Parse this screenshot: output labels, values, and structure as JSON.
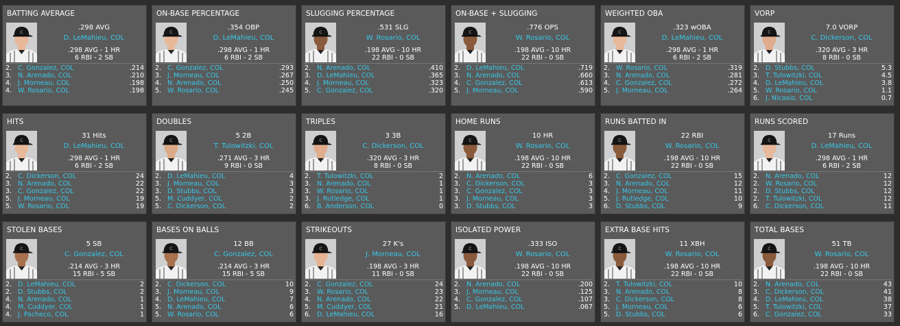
{
  "colors": {
    "background": "#2d2d2d",
    "card": "#5a5a5a",
    "link": "#38c8e8",
    "text": "#ffffff"
  },
  "cards": [
    {
      "title": "BATTING AVERAGE",
      "value": ".298 AVG",
      "name": "D. LeMahieu, COL",
      "line1": ".298 AVG - 1 HR",
      "line2": "6 RBI - 2 SB",
      "skin": "#e8b89a",
      "others": [
        {
          "rank": "2.",
          "name": "C. Gonzalez, COL",
          "value": ".214"
        },
        {
          "rank": "3.",
          "name": "N. Arenado, COL",
          "value": ".210"
        },
        {
          "rank": "4.",
          "name": "J. Morneau, COL",
          "value": ".198"
        },
        {
          "rank": "4.",
          "name": "W. Rosario, COL",
          "value": ".198"
        }
      ]
    },
    {
      "title": "ON-BASE PERCENTAGE",
      "value": ".354 OBP",
      "name": "D. LeMahieu, COL",
      "line1": ".298 AVG - 1 HR",
      "line2": "6 RBI - 2 SB",
      "skin": "#e8b89a",
      "others": [
        {
          "rank": "2.",
          "name": "C. Gonzalez, COL",
          "value": ".293"
        },
        {
          "rank": "3.",
          "name": "J. Morneau, COL",
          "value": ".267"
        },
        {
          "rank": "4.",
          "name": "N. Arenado, COL",
          "value": ".250"
        },
        {
          "rank": "5.",
          "name": "W. Rosario, COL",
          "value": ".245"
        }
      ]
    },
    {
      "title": "SLUGGING PERCENTAGE",
      "value": ".531 SLG",
      "name": "W. Rosario, COL",
      "line1": ".198 AVG - 10 HR",
      "line2": "22 RBI - 0 SB",
      "skin": "#8a5a3c",
      "others": [
        {
          "rank": "2.",
          "name": "N. Arenado, COL",
          "value": ".410"
        },
        {
          "rank": "3.",
          "name": "D. LeMahieu, COL",
          "value": ".365"
        },
        {
          "rank": "4.",
          "name": "J. Morneau, COL",
          "value": ".323"
        },
        {
          "rank": "5.",
          "name": "C. Gonzalez, COL",
          "value": ".320"
        }
      ]
    },
    {
      "title": "ON-BASE + SLUGGING",
      "value": ".776 OPS",
      "name": "W. Rosario, COL",
      "line1": ".198 AVG - 10 HR",
      "line2": "22 RBI - 0 SB",
      "skin": "#8a5a3c",
      "others": [
        {
          "rank": "2.",
          "name": "D. LeMahieu, COL",
          "value": ".719"
        },
        {
          "rank": "3.",
          "name": "N. Arenado, COL",
          "value": ".660"
        },
        {
          "rank": "4.",
          "name": "C. Gonzalez, COL",
          "value": ".613"
        },
        {
          "rank": "5.",
          "name": "J. Morneau, COL",
          "value": ".590"
        }
      ]
    },
    {
      "title": "WEIGHTED OBA",
      "value": ".323 wOBA",
      "name": "D. LeMahieu, COL",
      "line1": ".298 AVG - 1 HR",
      "line2": "6 RBI - 2 SB",
      "skin": "#e8b89a",
      "others": [
        {
          "rank": "2.",
          "name": "W. Rosario, COL",
          "value": ".319"
        },
        {
          "rank": "3.",
          "name": "N. Arenado, COL",
          "value": ".281"
        },
        {
          "rank": "4.",
          "name": "C. Gonzalez, COL",
          "value": ".272"
        },
        {
          "rank": "5.",
          "name": "J. Morneau, COL",
          "value": ".264"
        }
      ]
    },
    {
      "title": "VORP",
      "value": "7.0 VORP",
      "name": "C. Dickerson, COL",
      "line1": ".320 AVG - 3 HR",
      "line2": "8 RBI - 0 SB",
      "skin": "#e0ac8c",
      "others": [
        {
          "rank": "2.",
          "name": "D. Stubbs, COL",
          "value": "5.3"
        },
        {
          "rank": "3.",
          "name": "T. Tulowitzki, COL",
          "value": "4.5"
        },
        {
          "rank": "4.",
          "name": "D. LeMahieu, COL",
          "value": "3.8"
        },
        {
          "rank": "5.",
          "name": "W. Rosario, COL",
          "value": "1.1"
        },
        {
          "rank": "6.",
          "name": "J. Nicasio, COL",
          "value": "0.7"
        }
      ]
    },
    {
      "title": "HITS",
      "value": "31 Hits",
      "name": "D. LeMahieu, COL",
      "line1": ".298 AVG - 1 HR",
      "line2": "6 RBI - 2 SB",
      "skin": "#e8b89a",
      "others": [
        {
          "rank": "2.",
          "name": "C. Dickerson, COL",
          "value": "24"
        },
        {
          "rank": "3.",
          "name": "N. Arenado, COL",
          "value": "22"
        },
        {
          "rank": "3.",
          "name": "C. Gonzalez, COL",
          "value": "22"
        },
        {
          "rank": "5.",
          "name": "J. Morneau, COL",
          "value": "19"
        },
        {
          "rank": "5.",
          "name": "W. Rosario, COL",
          "value": "19"
        }
      ]
    },
    {
      "title": "DOUBLES",
      "value": "5 2B",
      "name": "T. Tulowitzki, COL",
      "line1": ".271 AVG - 3 HR",
      "line2": "9 RBI - 0 SB",
      "skin": "#dcaa88",
      "others": [
        {
          "rank": "2.",
          "name": "D. LeMahieu, COL",
          "value": "4"
        },
        {
          "rank": "3.",
          "name": "J. Morneau, COL",
          "value": "3"
        },
        {
          "rank": "3.",
          "name": "D. Stubbs, COL",
          "value": "3"
        },
        {
          "rank": "5.",
          "name": "M. Cuddyer, COL",
          "value": "2"
        },
        {
          "rank": "5.",
          "name": "C. Dickerson, COL",
          "value": "2"
        }
      ]
    },
    {
      "title": "TRIPLES",
      "value": "3 3B",
      "name": "C. Dickerson, COL",
      "line1": ".320 AVG - 3 HR",
      "line2": "8 RBI - 0 SB",
      "skin": "#e0ac8c",
      "others": [
        {
          "rank": "2.",
          "name": "T. Tulowitzki, COL",
          "value": "2"
        },
        {
          "rank": "3.",
          "name": "N. Arenado, COL",
          "value": "1"
        },
        {
          "rank": "3.",
          "name": "W. Rosario, COL",
          "value": "1"
        },
        {
          "rank": "3.",
          "name": "J. Rutledge, COL",
          "value": "1"
        },
        {
          "rank": "6.",
          "name": "B. Anderson, COL",
          "value": "0"
        }
      ]
    },
    {
      "title": "HOME RUNS",
      "value": "10 HR",
      "name": "W. Rosario, COL",
      "line1": ".198 AVG - 10 HR",
      "line2": "22 RBI - 0 SB",
      "skin": "#8a5a3c",
      "others": [
        {
          "rank": "2.",
          "name": "N. Arenado, COL",
          "value": "6"
        },
        {
          "rank": "3.",
          "name": "C. Dickerson, COL",
          "value": "3"
        },
        {
          "rank": "3.",
          "name": "C. Gonzalez, COL",
          "value": "3"
        },
        {
          "rank": "3.",
          "name": "J. Morneau, COL",
          "value": "3"
        },
        {
          "rank": "3.",
          "name": "D. Stubbs, COL",
          "value": "3"
        }
      ]
    },
    {
      "title": "RUNS BATTED IN",
      "value": "22 RBI",
      "name": "W. Rosario, COL",
      "line1": ".198 AVG - 10 HR",
      "line2": "22 RBI - 0 SB",
      "skin": "#8a5a3c",
      "others": [
        {
          "rank": "2.",
          "name": "C. Gonzalez, COL",
          "value": "15"
        },
        {
          "rank": "3.",
          "name": "N. Arenado, COL",
          "value": "12"
        },
        {
          "rank": "4.",
          "name": "J. Morneau, COL",
          "value": "11"
        },
        {
          "rank": "5.",
          "name": "J. Rutledge, COL",
          "value": "10"
        },
        {
          "rank": "6.",
          "name": "D. Stubbs, COL",
          "value": "9"
        }
      ]
    },
    {
      "title": "RUNS SCORED",
      "value": "17 Runs",
      "name": "D. LeMahieu, COL",
      "line1": ".298 AVG - 1 HR",
      "line2": "6 RBI - 2 SB",
      "skin": "#e8b89a",
      "others": [
        {
          "rank": "2.",
          "name": "N. Arenado, COL",
          "value": "12"
        },
        {
          "rank": "2.",
          "name": "W. Rosario, COL",
          "value": "12"
        },
        {
          "rank": "2.",
          "name": "D. Stubbs, COL",
          "value": "12"
        },
        {
          "rank": "2.",
          "name": "T. Tulowitzki, COL",
          "value": "12"
        },
        {
          "rank": "6.",
          "name": "C. Dickerson, COL",
          "value": "11"
        }
      ]
    },
    {
      "title": "STOLEN BASES",
      "value": "5 SB",
      "name": "C. Gonzalez, COL",
      "line1": ".214 AVG - 3 HR",
      "line2": "15 RBI - 5 SB",
      "skin": "#a8724e",
      "others": [
        {
          "rank": "2.",
          "name": "D. LeMahieu, COL",
          "value": "2"
        },
        {
          "rank": "2.",
          "name": "D. Stubbs, COL",
          "value": "2"
        },
        {
          "rank": "4.",
          "name": "N. Arenado, COL",
          "value": "1"
        },
        {
          "rank": "4.",
          "name": "M. Cuddyer, COL",
          "value": "1"
        },
        {
          "rank": "4.",
          "name": "J. Pacheco, COL",
          "value": "1"
        }
      ]
    },
    {
      "title": "BASES ON BALLS",
      "value": "12 BB",
      "name": "C. Gonzalez, COL",
      "line1": ".214 AVG - 3 HR",
      "line2": "15 RBI - 5 SB",
      "skin": "#a8724e",
      "others": [
        {
          "rank": "2.",
          "name": "C. Dickerson, COL",
          "value": "10"
        },
        {
          "rank": "3.",
          "name": "J. Morneau, COL",
          "value": "9"
        },
        {
          "rank": "4.",
          "name": "D. LeMahieu, COL",
          "value": "7"
        },
        {
          "rank": "5.",
          "name": "N. Arenado, COL",
          "value": "6"
        },
        {
          "rank": "5.",
          "name": "W. Rosario, COL",
          "value": "6"
        }
      ]
    },
    {
      "title": "STRIKEOUTS",
      "value": "27 K's",
      "name": "J. Morneau, COL",
      "line1": ".198 AVG - 3 HR",
      "line2": "11 RBI - 0 SB",
      "skin": "#e6b494",
      "others": [
        {
          "rank": "2.",
          "name": "C. Gonzalez, COL",
          "value": "24"
        },
        {
          "rank": "3.",
          "name": "W. Rosario, COL",
          "value": "23"
        },
        {
          "rank": "4.",
          "name": "N. Arenado, COL",
          "value": "22"
        },
        {
          "rank": "5.",
          "name": "M. Cuddyer, COL",
          "value": "21"
        },
        {
          "rank": "6.",
          "name": "D. LeMahieu, COL",
          "value": "16"
        }
      ]
    },
    {
      "title": "ISOLATED POWER",
      "value": ".333 ISO",
      "name": "W. Rosario, COL",
      "line1": ".198 AVG - 10 HR",
      "line2": "22 RBI - 0 SB",
      "skin": "#8a5a3c",
      "others": [
        {
          "rank": "2.",
          "name": "N. Arenado, COL",
          "value": ".200"
        },
        {
          "rank": "3.",
          "name": "J. Morneau, COL",
          "value": ".125"
        },
        {
          "rank": "4.",
          "name": "C. Gonzalez, COL",
          "value": ".107"
        },
        {
          "rank": "5.",
          "name": "D. LeMahieu, COL",
          "value": ".067"
        }
      ]
    },
    {
      "title": "EXTRA BASE HITS",
      "value": "11 XBH",
      "name": "W. Rosario, COL",
      "line1": ".198 AVG - 10 HR",
      "line2": "22 RBI - 0 SB",
      "skin": "#8a5a3c",
      "others": [
        {
          "rank": "2.",
          "name": "T. Tulowitzki, COL",
          "value": "10"
        },
        {
          "rank": "3.",
          "name": "N. Arenado, COL",
          "value": "8"
        },
        {
          "rank": "3.",
          "name": "C. Dickerson, COL",
          "value": "8"
        },
        {
          "rank": "5.",
          "name": "J. Morneau, COL",
          "value": "6"
        },
        {
          "rank": "5.",
          "name": "D. Stubbs, COL",
          "value": "6"
        }
      ]
    },
    {
      "title": "TOTAL BASES",
      "value": "51 TB",
      "name": "W. Rosario, COL",
      "line1": ".198 AVG - 10 HR",
      "line2": "22 RBI - 0 SB",
      "skin": "#8a5a3c",
      "others": [
        {
          "rank": "2.",
          "name": "N. Arenado, COL",
          "value": "43"
        },
        {
          "rank": "3.",
          "name": "C. Dickerson, COL",
          "value": "41"
        },
        {
          "rank": "4.",
          "name": "D. LeMahieu, COL",
          "value": "38"
        },
        {
          "rank": "5.",
          "name": "T. Tulowitzki, COL",
          "value": "37"
        },
        {
          "rank": "6.",
          "name": "C. Gonzalez, COL",
          "value": "33"
        }
      ]
    }
  ]
}
